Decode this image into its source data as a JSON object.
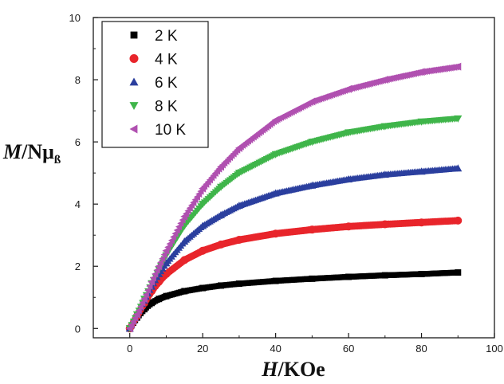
{
  "chart_data": {
    "type": "scatter",
    "xlabel": {
      "italic": "H",
      "rest": "/KOe"
    },
    "ylabel": {
      "italic": "M",
      "rest": "/Nμ",
      "subscript": "ß"
    },
    "xlim": [
      -10,
      100
    ],
    "ylim": [
      -0.3,
      10
    ],
    "xticks": [
      0,
      20,
      40,
      60,
      80,
      100
    ],
    "yticks": [
      0,
      2,
      4,
      6,
      8,
      10
    ],
    "xtick_labels": [
      "0",
      "20",
      "40",
      "60",
      "80",
      "100"
    ],
    "ytick_labels": [
      "0",
      "2",
      "4",
      "6",
      "8",
      "10"
    ],
    "legend_position": "top-left",
    "grid": false,
    "series": [
      {
        "name": "2 K",
        "marker": "square",
        "color": "#000000",
        "x": [
          0,
          2,
          4,
          6,
          8,
          10,
          15,
          20,
          25,
          30,
          40,
          50,
          60,
          70,
          80,
          90
        ],
        "y": [
          0,
          0.35,
          0.62,
          0.82,
          0.95,
          1.04,
          1.2,
          1.3,
          1.38,
          1.44,
          1.53,
          1.6,
          1.66,
          1.71,
          1.75,
          1.8
        ]
      },
      {
        "name": "4 K",
        "marker": "circle",
        "color": "#e8252b",
        "x": [
          0,
          2,
          4,
          6,
          8,
          10,
          15,
          20,
          25,
          30,
          40,
          50,
          60,
          70,
          80,
          90
        ],
        "y": [
          0,
          0.4,
          0.82,
          1.2,
          1.5,
          1.75,
          2.2,
          2.5,
          2.7,
          2.85,
          3.05,
          3.18,
          3.28,
          3.35,
          3.41,
          3.47
        ]
      },
      {
        "name": "6 K",
        "marker": "triangle-up",
        "color": "#2b3f9e",
        "x": [
          0,
          2,
          4,
          6,
          8,
          10,
          15,
          20,
          25,
          30,
          40,
          50,
          60,
          70,
          80,
          90
        ],
        "y": [
          0,
          0.45,
          0.9,
          1.35,
          1.75,
          2.1,
          2.8,
          3.3,
          3.65,
          3.95,
          4.35,
          4.6,
          4.8,
          4.95,
          5.05,
          5.15
        ]
      },
      {
        "name": "8 K",
        "marker": "triangle-down",
        "color": "#3fb54a",
        "x": [
          0,
          2,
          4,
          6,
          8,
          10,
          15,
          20,
          25,
          30,
          40,
          50,
          60,
          70,
          80,
          90
        ],
        "y": [
          0,
          0.45,
          0.95,
          1.45,
          1.9,
          2.35,
          3.3,
          4.0,
          4.55,
          5.0,
          5.6,
          6.0,
          6.3,
          6.5,
          6.65,
          6.75
        ]
      },
      {
        "name": "10 K",
        "marker": "triangle-left",
        "color": "#b050b0",
        "x": [
          0,
          2,
          4,
          6,
          8,
          10,
          15,
          20,
          25,
          30,
          40,
          50,
          60,
          70,
          80,
          90
        ],
        "y": [
          0,
          0.45,
          0.95,
          1.5,
          2.0,
          2.5,
          3.6,
          4.5,
          5.2,
          5.8,
          6.7,
          7.3,
          7.7,
          8.0,
          8.25,
          8.42
        ]
      }
    ]
  }
}
